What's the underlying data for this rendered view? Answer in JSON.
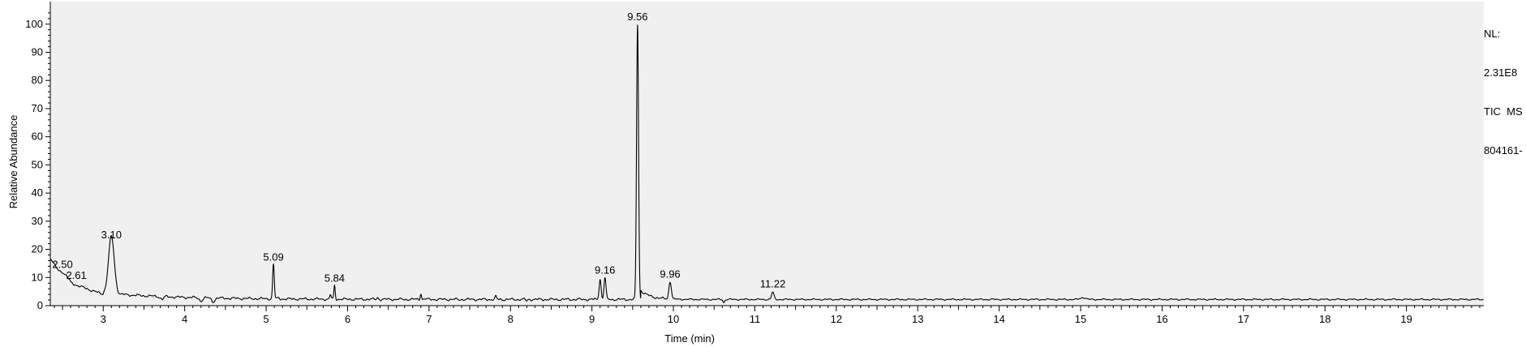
{
  "chart_data": {
    "type": "line",
    "xlabel": "Time (min)",
    "ylabel": "Relative Abundance",
    "xlim": [
      2.35,
      19.95
    ],
    "ylim": [
      0,
      108
    ],
    "x_ticks": [
      3,
      4,
      5,
      6,
      7,
      8,
      9,
      10,
      11,
      12,
      13,
      14,
      15,
      16,
      17,
      18,
      19
    ],
    "y_ticks": [
      0,
      10,
      20,
      30,
      40,
      50,
      60,
      70,
      80,
      90,
      100
    ],
    "baseline": 2.2,
    "start_points": [
      [
        2.35,
        17
      ],
      [
        2.4,
        14.5
      ],
      [
        2.45,
        12.5
      ],
      [
        2.5,
        12
      ],
      [
        2.55,
        10.5
      ],
      [
        2.61,
        8
      ],
      [
        2.7,
        7
      ],
      [
        2.8,
        6
      ],
      [
        2.9,
        5
      ],
      [
        3.0,
        4.5
      ]
    ],
    "peaks": [
      {
        "rt": 3.1,
        "height": 22.5,
        "width": 0.035
      },
      {
        "rt": 3.72,
        "height": 1.2,
        "width": 0.02
      },
      {
        "rt": 4.2,
        "height": 1.0,
        "width": 0.02
      },
      {
        "rt": 4.35,
        "height": 0.8,
        "width": 0.02
      },
      {
        "rt": 5.09,
        "height": 14.5,
        "width": 0.01
      },
      {
        "rt": 5.15,
        "height": 2.5,
        "width": 0.01
      },
      {
        "rt": 5.79,
        "height": 4.0,
        "width": 0.008
      },
      {
        "rt": 5.84,
        "height": 7.0,
        "width": 0.008
      },
      {
        "rt": 6.37,
        "height": 3.0,
        "width": 0.008
      },
      {
        "rt": 6.9,
        "height": 4.5,
        "width": 0.008
      },
      {
        "rt": 6.95,
        "height": 2.5,
        "width": 0.008
      },
      {
        "rt": 7.37,
        "height": 2.0,
        "width": 0.008
      },
      {
        "rt": 7.82,
        "height": 3.5,
        "width": 0.008
      },
      {
        "rt": 8.2,
        "height": 1.5,
        "width": 0.008
      },
      {
        "rt": 9.1,
        "height": 9.5,
        "width": 0.012
      },
      {
        "rt": 9.16,
        "height": 10.0,
        "width": 0.012
      },
      {
        "rt": 9.56,
        "height": 100,
        "width": 0.012
      },
      {
        "rt": 9.96,
        "height": 8.5,
        "width": 0.015
      },
      {
        "rt": 10.62,
        "height": 1.0,
        "width": 0.01
      },
      {
        "rt": 11.22,
        "height": 5.0,
        "width": 0.015
      },
      {
        "rt": 15.03,
        "height": 3.0,
        "width": 0.03
      }
    ],
    "labels": [
      {
        "text": "2.50",
        "x": 2.5,
        "y": 12
      },
      {
        "text": "2.61",
        "x": 2.61,
        "y": 8
      },
      {
        "text": "3.10",
        "x": 3.1,
        "y": 22.5
      },
      {
        "text": "5.09",
        "x": 5.09,
        "y": 14.5
      },
      {
        "text": "5.84",
        "x": 5.84,
        "y": 7
      },
      {
        "text": "9.16",
        "x": 9.16,
        "y": 10
      },
      {
        "text": "9.56",
        "x": 9.56,
        "y": 100
      },
      {
        "text": "9.96",
        "x": 9.96,
        "y": 8.5
      },
      {
        "text": "11.22",
        "x": 11.22,
        "y": 5
      }
    ]
  },
  "side_info": {
    "nl_label": "NL:",
    "nl_value": "2.31E8",
    "scan_filter": "TIC  MS",
    "file_id": "804161-"
  }
}
